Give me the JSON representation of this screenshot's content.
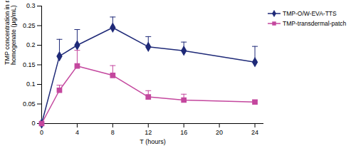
{
  "chart_data": {
    "type": "line",
    "x_label": "T (hours)",
    "y_label": "TMP concentration in rat brain homogenate (µg/mL)",
    "x": [
      0,
      2,
      4,
      8,
      12,
      16,
      24
    ],
    "series": [
      {
        "name": "TMP-O/W-EVA-TTS",
        "color": "#1f2a78",
        "marker": "diamond",
        "values": [
          0,
          0.172,
          0.2,
          0.245,
          0.196,
          0.186,
          0.157
        ],
        "errors": [
          null,
          0.043,
          0.04,
          0.027,
          0.026,
          0.022,
          0.04
        ]
      },
      {
        "name": "TMP-transdermal-patch",
        "color": "#c4479e",
        "marker": "square",
        "values": [
          0,
          0.085,
          0.147,
          0.123,
          0.068,
          0.06,
          0.055
        ],
        "errors": [
          null,
          0.013,
          0.04,
          0.025,
          0.016,
          0.015,
          0.005
        ]
      }
    ],
    "xlim": [
      0,
      25
    ],
    "xticks": [
      0,
      4,
      8,
      12,
      16,
      20,
      24
    ],
    "ylim": [
      0,
      0.3
    ],
    "yticks": [
      0,
      0.05,
      0.1,
      0.15,
      0.2,
      0.25,
      0.3
    ],
    "grid": false,
    "legend": "right"
  }
}
